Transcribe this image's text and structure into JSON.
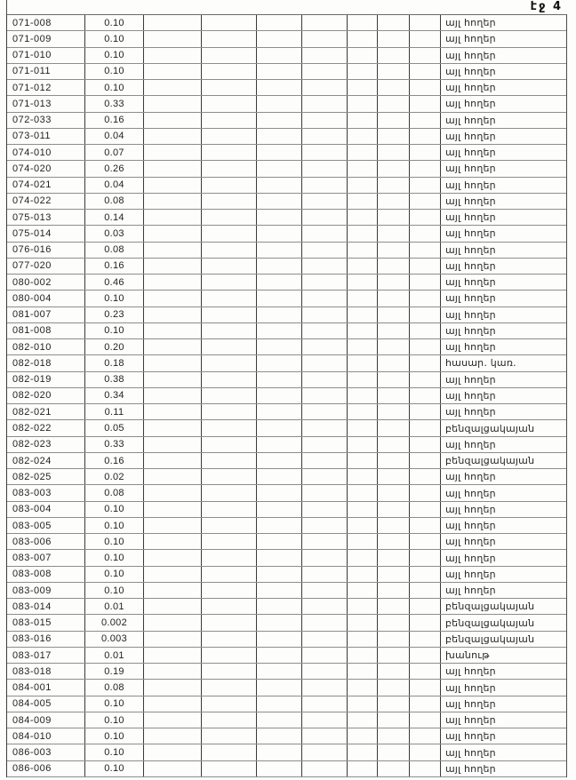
{
  "page": {
    "label": "էջ 4"
  },
  "table": {
    "columns": {
      "code": "parcel-code",
      "value": "area-value",
      "empty_count": 7,
      "land_type": "land-use-type"
    },
    "rows": [
      {
        "code": "071-008",
        "value": "0.10",
        "land_type": "այլ հողեր"
      },
      {
        "code": "071-009",
        "value": "0.10",
        "land_type": "այլ հողեր"
      },
      {
        "code": "071-010",
        "value": "0.10",
        "land_type": "այլ հողեր"
      },
      {
        "code": "071-011",
        "value": "0.10",
        "land_type": "այլ հողեր"
      },
      {
        "code": "071-012",
        "value": "0.10",
        "land_type": "այլ հողեր"
      },
      {
        "code": "071-013",
        "value": "0.33",
        "land_type": "այլ հողեր"
      },
      {
        "code": "072-033",
        "value": "0.16",
        "land_type": "այլ հողեր"
      },
      {
        "code": "073-011",
        "value": "0.04",
        "land_type": "այլ հողեր"
      },
      {
        "code": "074-010",
        "value": "0.07",
        "land_type": "այլ հողեր"
      },
      {
        "code": "074-020",
        "value": "0.26",
        "land_type": "այլ հողեր"
      },
      {
        "code": "074-021",
        "value": "0.04",
        "land_type": "այլ հողեր"
      },
      {
        "code": "074-022",
        "value": "0.08",
        "land_type": "այլ հողեր"
      },
      {
        "code": "075-013",
        "value": "0.14",
        "land_type": "այլ հողեր"
      },
      {
        "code": "075-014",
        "value": "0.03",
        "land_type": "այլ հողեր"
      },
      {
        "code": "076-016",
        "value": "0.08",
        "land_type": "այլ հողեր"
      },
      {
        "code": "077-020",
        "value": "0.16",
        "land_type": "այլ հողեր"
      },
      {
        "code": "080-002",
        "value": "0.46",
        "land_type": "այլ հողեր"
      },
      {
        "code": "080-004",
        "value": "0.10",
        "land_type": "այլ հողեր"
      },
      {
        "code": "081-007",
        "value": "0.23",
        "land_type": "այլ հողեր"
      },
      {
        "code": "081-008",
        "value": "0.10",
        "land_type": "այլ հողեր"
      },
      {
        "code": "082-010",
        "value": "0.20",
        "land_type": "այլ հողեր"
      },
      {
        "code": "082-018",
        "value": "0.18",
        "land_type": "հասար. կառ."
      },
      {
        "code": "082-019",
        "value": "0.38",
        "land_type": "այլ հողեր"
      },
      {
        "code": "082-020",
        "value": "0.34",
        "land_type": "այլ հողեր"
      },
      {
        "code": "082-021",
        "value": "0.11",
        "land_type": "այլ հողեր"
      },
      {
        "code": "082-022",
        "value": "0.05",
        "land_type": "բենզալցակայան"
      },
      {
        "code": "082-023",
        "value": "0.33",
        "land_type": "այլ հողեր"
      },
      {
        "code": "082-024",
        "value": "0.16",
        "land_type": "բենզալցակայան"
      },
      {
        "code": "082-025",
        "value": "0.02",
        "land_type": "այլ հողեր"
      },
      {
        "code": "083-003",
        "value": "0.08",
        "land_type": "այլ հողեր"
      },
      {
        "code": "083-004",
        "value": "0.10",
        "land_type": "այլ հողեր"
      },
      {
        "code": "083-005",
        "value": "0.10",
        "land_type": "այլ հողեր"
      },
      {
        "code": "083-006",
        "value": "0.10",
        "land_type": "այլ հողեր"
      },
      {
        "code": "083-007",
        "value": "0.10",
        "land_type": "այլ հողեր"
      },
      {
        "code": "083-008",
        "value": "0.10",
        "land_type": "այլ հողեր"
      },
      {
        "code": "083-009",
        "value": "0.10",
        "land_type": "այլ հողեր"
      },
      {
        "code": "083-014",
        "value": "0.01",
        "land_type": "բենզալցակայան"
      },
      {
        "code": "083-015",
        "value": "0.002",
        "land_type": "բենզալցակայան"
      },
      {
        "code": "083-016",
        "value": "0.003",
        "land_type": "բենզալցակայան"
      },
      {
        "code": "083-017",
        "value": "0.01",
        "land_type": "խանութ"
      },
      {
        "code": "083-018",
        "value": "0.19",
        "land_type": "այլ հողեր"
      },
      {
        "code": "084-001",
        "value": "0.08",
        "land_type": "այլ հողեր"
      },
      {
        "code": "084-005",
        "value": "0.10",
        "land_type": "այլ հողեր"
      },
      {
        "code": "084-009",
        "value": "0.10",
        "land_type": "այլ հողեր"
      },
      {
        "code": "084-010",
        "value": "0.10",
        "land_type": "այլ հողեր"
      },
      {
        "code": "086-003",
        "value": "0.10",
        "land_type": "այլ հողեր"
      },
      {
        "code": "086-006",
        "value": "0.10",
        "land_type": "այլ հողեր"
      }
    ]
  }
}
